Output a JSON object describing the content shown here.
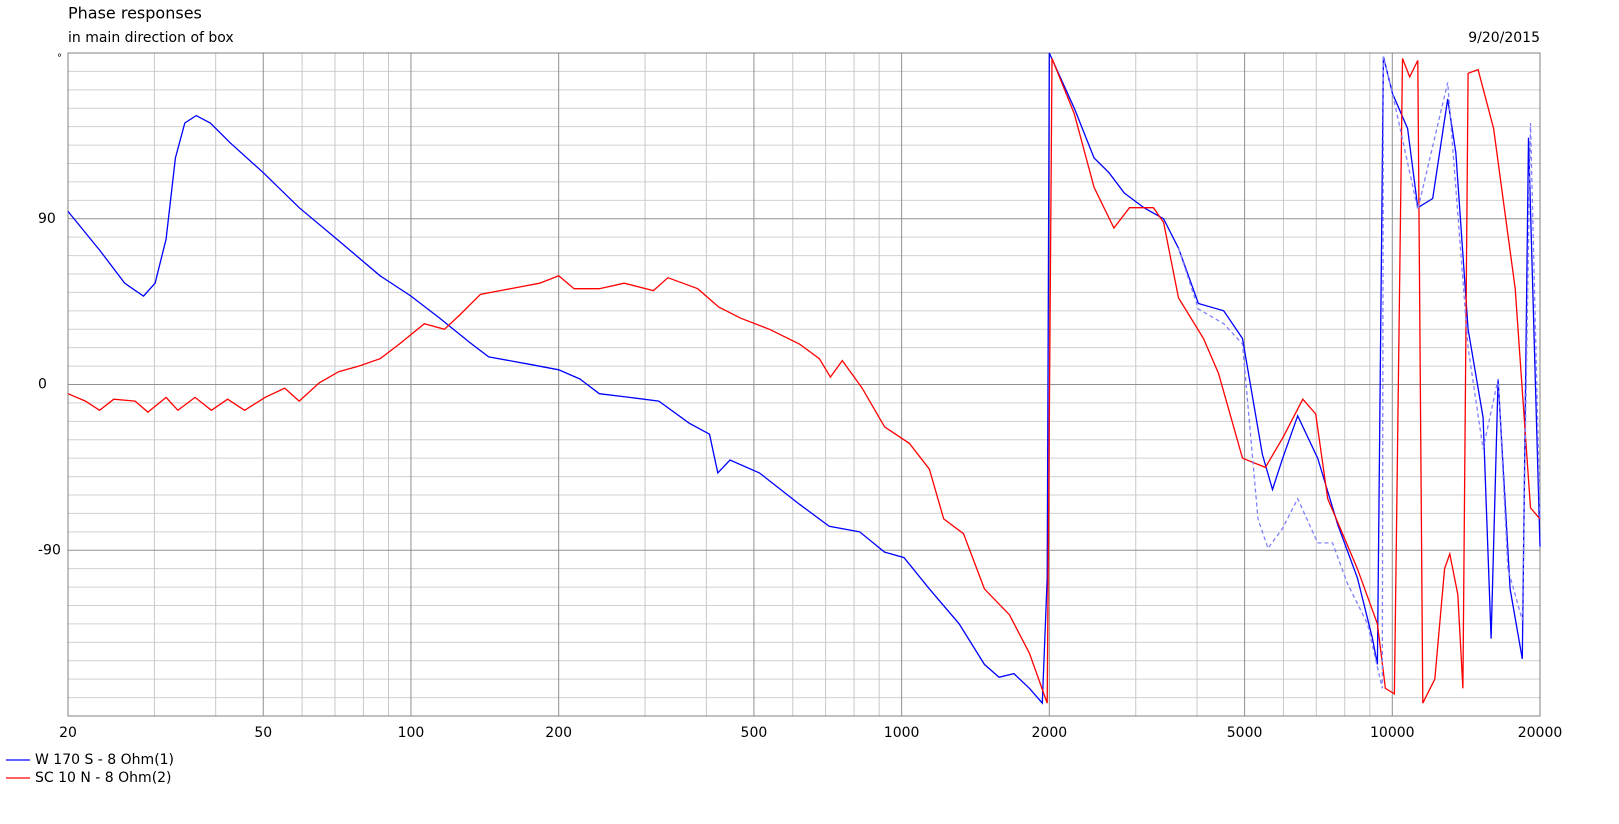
{
  "chart_data": {
    "type": "line",
    "title": "Phase responses",
    "subtitle": "in main direction of box",
    "date": "9/20/2015",
    "y_unit": "°",
    "xscale": "log",
    "grid": true,
    "xlim": [
      20,
      20000
    ],
    "xticks": [
      20,
      50,
      100,
      200,
      500,
      1000,
      2000,
      5000,
      10000,
      20000
    ],
    "xminorticks": [
      30,
      40,
      60,
      70,
      80,
      90,
      300,
      400,
      600,
      700,
      800,
      900,
      3000,
      4000,
      6000,
      7000,
      8000,
      9000
    ],
    "ylim": [
      -180,
      180
    ],
    "yticks": [
      -90,
      0,
      90
    ],
    "yminorticks": [
      -170,
      -160,
      -150,
      -140,
      -130,
      -120,
      -110,
      -100,
      -80,
      -70,
      -60,
      -50,
      -40,
      -30,
      -20,
      -10,
      10,
      20,
      30,
      40,
      50,
      60,
      70,
      80,
      100,
      110,
      120,
      130,
      140,
      150,
      160,
      170
    ],
    "series": [
      {
        "name": "W 170 S - 8 Ohm(1)",
        "color": "#0000ff",
        "x": [
          20,
          23.2,
          26.1,
          28.5,
          30.1,
          31.7,
          33.1,
          34.6,
          36.5,
          39,
          42.9,
          50,
          59.2,
          71.3,
          86.5,
          100,
          114.5,
          131.5,
          144,
          174,
          200,
          221,
          242,
          279,
          320,
          369,
          406,
          422,
          447,
          513,
          619,
          712,
          821,
          923,
          1011,
          1139,
          1310,
          1475,
          1580,
          1694,
          1822,
          1935,
          1980,
          2000,
          2249,
          2468,
          2646,
          2843,
          3117,
          3419,
          3666,
          4026,
          4533,
          4952,
          5436,
          5701,
          5978,
          6415,
          7047,
          7739,
          8490,
          9115,
          9327,
          9593,
          10010,
          10744,
          11270,
          12090,
          12970,
          13470,
          14270,
          15310,
          15900,
          16430,
          17380,
          18410,
          18950,
          20000
        ],
        "values": [
          94,
          73,
          55,
          48,
          55,
          79,
          123,
          142,
          146,
          142,
          131,
          115,
          96,
          78,
          59,
          48,
          36,
          23,
          15,
          11,
          8,
          3,
          -5,
          -7,
          -9,
          -21,
          -27,
          -48,
          -41,
          -48,
          -65,
          -77,
          -80,
          -91,
          -94,
          -111,
          -130,
          -152,
          -159,
          -157,
          -165,
          -173,
          -105,
          180,
          150,
          123,
          115,
          104,
          96,
          90,
          74,
          44,
          40,
          25,
          -38,
          -57,
          -40,
          -17,
          -40,
          -76,
          -105,
          -138,
          -152,
          178,
          158,
          139,
          96,
          101,
          155,
          126,
          30,
          -18,
          -138,
          3,
          -111,
          -149,
          134,
          -88
        ]
      },
      {
        "name": "SC 10 N - 8 Ohm(2)",
        "color": "#ff0000",
        "x": [
          20,
          21.7,
          23.2,
          24.8,
          27.4,
          29.1,
          31.7,
          33.5,
          36.3,
          39.2,
          42.3,
          45.8,
          50.4,
          55.3,
          59.2,
          65.1,
          71.3,
          78.3,
          86.5,
          94.7,
          106.5,
          117,
          126,
          138.6,
          152,
          167,
          183,
          200,
          215,
          242,
          272,
          312,
          334,
          384,
          424,
          470,
          538,
          619,
          680,
          716,
          757,
          831,
          923,
          1037,
          1139,
          1218,
          1337,
          1475,
          1658,
          1822,
          1980,
          2025,
          2249,
          2468,
          2708,
          2913,
          3260,
          3419,
          3666,
          4124,
          4423,
          4952,
          5514,
          5978,
          6570,
          6980,
          7384,
          8490,
          9327,
          9683,
          10100,
          10490,
          10850,
          11270,
          11540,
          12210,
          12780,
          13100,
          13600,
          13930,
          14270,
          14960,
          16090,
          17800,
          19130,
          20000
        ],
        "values": [
          -5,
          -9,
          -14,
          -8,
          -9,
          -15,
          -7,
          -14,
          -7,
          -14,
          -8,
          -14,
          -7,
          -2,
          -9,
          1,
          7,
          10,
          14,
          22,
          33,
          30,
          38,
          49,
          51,
          53,
          55,
          59,
          52,
          52,
          55,
          51,
          58,
          52,
          42,
          36,
          30,
          22,
          14,
          4,
          13,
          -2,
          -23,
          -32,
          -46,
          -73,
          -81,
          -111,
          -125,
          -146,
          -173,
          177,
          147,
          107,
          85,
          96,
          96,
          88,
          47,
          25,
          6,
          -40,
          -45,
          -29,
          -8,
          -16,
          -62,
          -100,
          -130,
          -165,
          -168,
          177,
          167,
          176,
          -173,
          -160,
          -100,
          -92,
          -114,
          -165,
          169,
          171,
          139,
          52,
          -67,
          -73
        ]
      },
      {
        "color": "#8080ff",
        "dash": "4 3",
        "x": [
          3666,
          4026,
          4533,
          4952,
          5325,
          5580,
          5978,
          6415,
          7047,
          7554,
          8100,
          8900,
          9540,
          9593,
          10010,
          11270,
          12970,
          14270,
          15310,
          16430,
          17200,
          18410,
          19130,
          20000
        ],
        "values": [
          74,
          41,
          33,
          22,
          -73,
          -89,
          -78,
          -62,
          -86,
          -86,
          -108,
          -130,
          -165,
          178,
          158,
          95,
          164,
          20,
          -35,
          3,
          -100,
          -128,
          142,
          -73
        ]
      }
    ]
  }
}
